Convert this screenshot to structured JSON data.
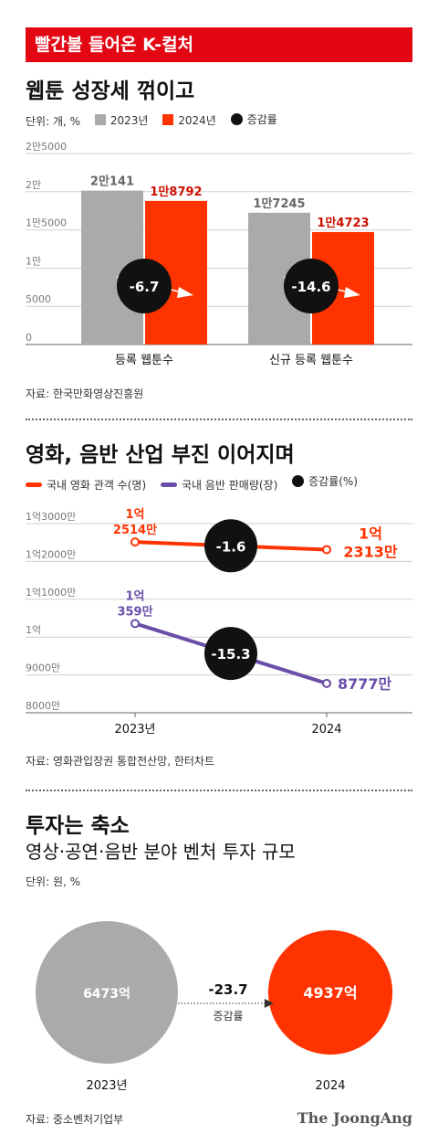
{
  "banner": "빨간불 들어온 K-컬처",
  "source_credit": "The JoongAng",
  "colors": {
    "red": "#ff3300",
    "gray": "#aaaaaa",
    "purple": "#6a4ea8",
    "black": "#111111",
    "banner": "#e30613"
  },
  "chart_data": [
    {
      "type": "bar",
      "title": "웹툰 성장세 꺾이고",
      "unit": "단위: 개, %",
      "legend": [
        "2023년",
        "2024년",
        "증감률"
      ],
      "categories": [
        "등록 웹툰수",
        "신규 등록 웹툰수"
      ],
      "series": [
        {
          "name": "2023년",
          "values": [
            20141,
            17245
          ],
          "labels": [
            "2만141",
            "1만7245"
          ]
        },
        {
          "name": "2024년",
          "values": [
            18792,
            14723
          ],
          "labels": [
            "1만8792",
            "1만4723"
          ]
        }
      ],
      "change": [
        "-6.7",
        "-14.6"
      ],
      "yticks": [
        {
          "v": 0,
          "label": "0"
        },
        {
          "v": 5000,
          "label": "5000"
        },
        {
          "v": 10000,
          "label": "1만"
        },
        {
          "v": 15000,
          "label": "1만5000"
        },
        {
          "v": 20000,
          "label": "2만"
        },
        {
          "v": 25000,
          "label": "2만5000"
        }
      ],
      "ylim": [
        0,
        25000
      ],
      "source": "자료: 한국만화영상진흥원"
    },
    {
      "type": "line",
      "title": "영화, 음반 산업 부진 이어지며",
      "legend": [
        "국내 영화 관객 수(명)",
        "국내 음반 판매량(장)",
        "증감률(%)"
      ],
      "x": [
        "2023년",
        "2024"
      ],
      "series": [
        {
          "name": "국내 영화 관객 수(명)",
          "values": [
            125140000,
            123130000
          ],
          "labels": [
            [
              "1억",
              "2514만"
            ],
            [
              "1억",
              "2313만"
            ]
          ],
          "change": "-1.6"
        },
        {
          "name": "국내 음반 판매량(장)",
          "values": [
            103590000,
            87770000
          ],
          "labels": [
            [
              "1억",
              "359만"
            ],
            [
              "",
              "8777만"
            ]
          ],
          "change": "-15.3"
        }
      ],
      "yticks": [
        {
          "v": 80000000,
          "label": "8000만"
        },
        {
          "v": 90000000,
          "label": "9000만"
        },
        {
          "v": 100000000,
          "label": "1억"
        },
        {
          "v": 110000000,
          "label": "1억1000만"
        },
        {
          "v": 120000000,
          "label": "1억2000만"
        },
        {
          "v": 130000000,
          "label": "1억3000만"
        }
      ],
      "ylim": [
        80000000,
        130000000
      ],
      "source": "자료: 영화관입장권 통합전산망, 한터차트"
    },
    {
      "type": "bubble",
      "title": "투자는 축소",
      "subtitle": "영상·공연·음반 분야 벤처 투자 규모",
      "unit": "단위: 원, %",
      "categories": [
        "2023년",
        "2024"
      ],
      "values": [
        647300000000,
        493700000000
      ],
      "labels": [
        "6473억",
        "4937억"
      ],
      "change": "-23.7",
      "change_label": "증감률",
      "source": "자료: 중소벤처기업부"
    }
  ]
}
